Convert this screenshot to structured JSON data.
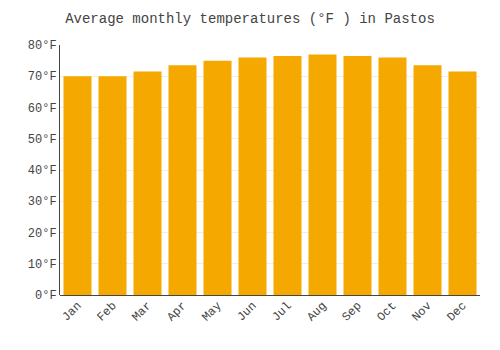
{
  "chart_data": {
    "type": "bar",
    "title": "Average monthly temperatures (°F ) in Pastos",
    "categories": [
      "Jan",
      "Feb",
      "Mar",
      "Apr",
      "May",
      "Jun",
      "Jul",
      "Aug",
      "Sep",
      "Oct",
      "Nov",
      "Dec"
    ],
    "values": [
      70.0,
      70.0,
      71.5,
      73.5,
      75.0,
      76.0,
      76.5,
      77.0,
      76.5,
      76.0,
      73.5,
      71.5
    ],
    "color": "#F5A800",
    "ylim": [
      0,
      80
    ],
    "yticks": [
      {
        "value": 0,
        "label": "0°F"
      },
      {
        "value": 10,
        "label": "10°F"
      },
      {
        "value": 20,
        "label": "20°F"
      },
      {
        "value": 30,
        "label": "30°F"
      },
      {
        "value": 40,
        "label": "40°F"
      },
      {
        "value": 50,
        "label": "50°F"
      },
      {
        "value": 60,
        "label": "60°F"
      },
      {
        "value": 70,
        "label": "70°F"
      },
      {
        "value": 80,
        "label": "80°F"
      }
    ],
    "grid": true
  }
}
